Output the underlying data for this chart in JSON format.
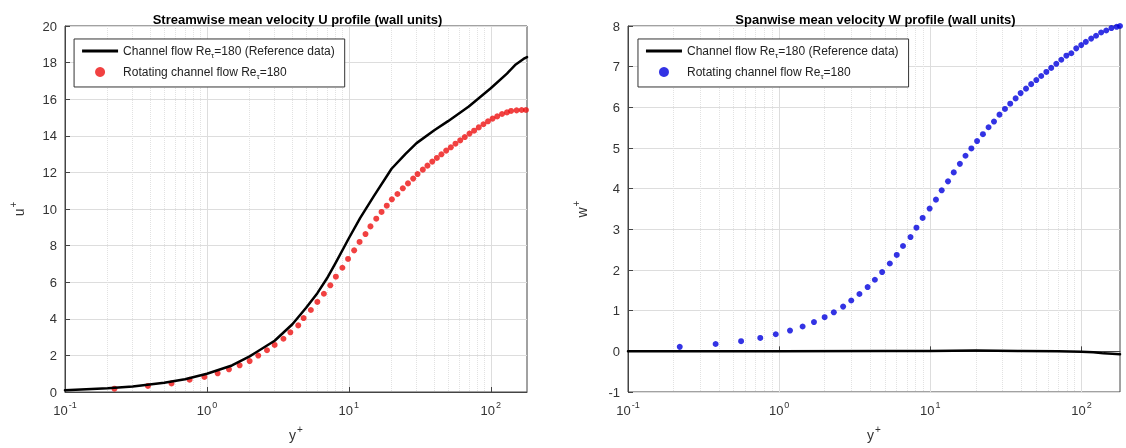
{
  "chart_data": [
    {
      "type": "line",
      "title": "Streamwise mean velocity U profile (wall units)",
      "xlabel": "y$^{+}$",
      "ylabel": "u$^{+}$",
      "log": "x",
      "grid": true,
      "legend": "top left",
      "xlim": [
        0.1,
        180
      ],
      "xticks": [
        {
          "value": 0.1,
          "label": "10$^{-1}$"
        },
        {
          "value": 1,
          "label": "10$^{0}$"
        },
        {
          "value": 10,
          "label": "10$^{1}$"
        },
        {
          "value": 100,
          "label": "10$^{2}$"
        }
      ],
      "ylim": [
        0,
        20
      ],
      "yticks": [
        0,
        2,
        4,
        6,
        8,
        10,
        12,
        14,
        16,
        18,
        20
      ],
      "series": [
        {
          "name": "Channel flow Re$_{τ}$=180 (Reference data)",
          "type": "line",
          "color": "#000000",
          "line_style": "solid",
          "marker": "none",
          "x": [
            0.1,
            0.2,
            0.3,
            0.5,
            0.7,
            1,
            1.5,
            2,
            3,
            4,
            5,
            6,
            7,
            8,
            10,
            12,
            15,
            20,
            25,
            30,
            40,
            50,
            70,
            100,
            130,
            150,
            170,
            180
          ],
          "values": [
            0.1,
            0.2,
            0.3,
            0.5,
            0.7,
            1.0,
            1.45,
            1.95,
            2.8,
            3.7,
            4.6,
            5.4,
            6.2,
            7.0,
            8.4,
            9.5,
            10.7,
            12.2,
            13.0,
            13.6,
            14.3,
            14.8,
            15.6,
            16.6,
            17.4,
            17.9,
            18.2,
            18.3
          ]
        },
        {
          "name": "Rotating channel flow Re$_{τ}$=180",
          "type": "scatter",
          "color": "#ee1111",
          "marker": "circle",
          "x": [
            0.223,
            0.384,
            0.563,
            0.755,
            0.96,
            1.19,
            1.43,
            1.7,
            2.0,
            2.3,
            2.65,
            3.0,
            3.46,
            3.87,
            4.4,
            4.8,
            5.4,
            6.0,
            6.67,
            7.4,
            8.1,
            9.0,
            9.87,
            10.9,
            11.9,
            13.1,
            14.2,
            15.6,
            17.0,
            18.5,
            20.1,
            22.0,
            24.0,
            26.1,
            28.4,
            30.5,
            33.2,
            35.8,
            38.7,
            41.7,
            44.9,
            48.5,
            52.3,
            56.4,
            60.9,
            65.6,
            70.8,
            76.3,
            82.3,
            88.8,
            95.6,
            103,
            111,
            120,
            130,
            139,
            152,
            165,
            177
          ],
          "values": [
            0.18,
            0.33,
            0.47,
            0.67,
            0.82,
            1.02,
            1.24,
            1.46,
            1.69,
            1.99,
            2.28,
            2.57,
            2.91,
            3.26,
            3.64,
            4.04,
            4.48,
            4.92,
            5.37,
            5.83,
            6.3,
            6.79,
            7.27,
            7.74,
            8.2,
            8.63,
            9.05,
            9.47,
            9.84,
            10.18,
            10.53,
            10.82,
            11.13,
            11.4,
            11.66,
            11.91,
            12.15,
            12.37,
            12.59,
            12.79,
            12.99,
            13.19,
            13.37,
            13.57,
            13.75,
            13.93,
            14.12,
            14.28,
            14.46,
            14.63,
            14.79,
            14.94,
            15.06,
            15.19,
            15.28,
            15.36,
            15.39,
            15.41,
            15.41
          ]
        }
      ]
    },
    {
      "type": "line",
      "title": "Spanwise mean velocity W profile (wall units)",
      "xlabel": "y$^{+}$",
      "ylabel": "w$^{+}$",
      "log": "x",
      "grid": true,
      "legend": "top left",
      "xlim": [
        0.1,
        180
      ],
      "xticks": [
        {
          "value": 0.1,
          "label": "10$^{-1}$"
        },
        {
          "value": 1,
          "label": "10$^{0}$"
        },
        {
          "value": 10,
          "label": "10$^{1}$"
        },
        {
          "value": 100,
          "label": "10$^{2}$"
        }
      ],
      "ylim": [
        -1,
        8
      ],
      "yticks": [
        -1,
        0,
        1,
        2,
        3,
        4,
        5,
        6,
        7,
        8
      ],
      "series": [
        {
          "name": "Channel flow Re$_{τ}$=180 (Reference data)",
          "type": "line",
          "color": "#000000",
          "line_style": "solid",
          "marker": "none",
          "x": [
            0.1,
            1,
            5,
            10,
            20,
            40,
            70,
            100,
            120,
            140,
            160,
            180
          ],
          "values": [
            0,
            0,
            0.01,
            0.01,
            0.02,
            0.01,
            0,
            -0.01,
            -0.02,
            -0.05,
            -0.06,
            -0.07
          ]
        },
        {
          "name": "Rotating channel flow Re$_{τ}$=180",
          "type": "scatter",
          "color": "#0000dd",
          "marker": "circle",
          "x": [
            0.22,
            0.38,
            0.56,
            0.75,
            0.95,
            1.18,
            1.43,
            1.7,
            2.0,
            2.3,
            2.65,
            3.0,
            3.4,
            3.85,
            4.3,
            4.8,
            5.4,
            6.0,
            6.6,
            7.4,
            8.1,
            8.9,
            9.9,
            10.9,
            11.9,
            13.1,
            14.3,
            15.7,
            17.1,
            18.7,
            20.4,
            22.3,
            24.3,
            26.4,
            28.7,
            31.2,
            33.8,
            36.7,
            39.6,
            43.0,
            46.5,
            50.3,
            54.2,
            58.6,
            63.1,
            68.2,
            73.6,
            79.5,
            85.7,
            92.4,
            99.7,
            107,
            116,
            125,
            135,
            146,
            158,
            171,
            180
          ],
          "values": [
            0.11,
            0.18,
            0.25,
            0.33,
            0.42,
            0.51,
            0.61,
            0.72,
            0.84,
            0.96,
            1.1,
            1.25,
            1.41,
            1.58,
            1.76,
            1.95,
            2.16,
            2.37,
            2.59,
            2.81,
            3.04,
            3.28,
            3.51,
            3.73,
            3.96,
            4.18,
            4.4,
            4.61,
            4.81,
            4.99,
            5.17,
            5.34,
            5.51,
            5.65,
            5.82,
            5.96,
            6.09,
            6.22,
            6.35,
            6.46,
            6.57,
            6.67,
            6.77,
            6.87,
            6.97,
            7.07,
            7.17,
            7.27,
            7.33,
            7.45,
            7.53,
            7.61,
            7.69,
            7.76,
            7.84,
            7.89,
            7.95,
            7.98,
            8.0
          ]
        }
      ]
    }
  ]
}
